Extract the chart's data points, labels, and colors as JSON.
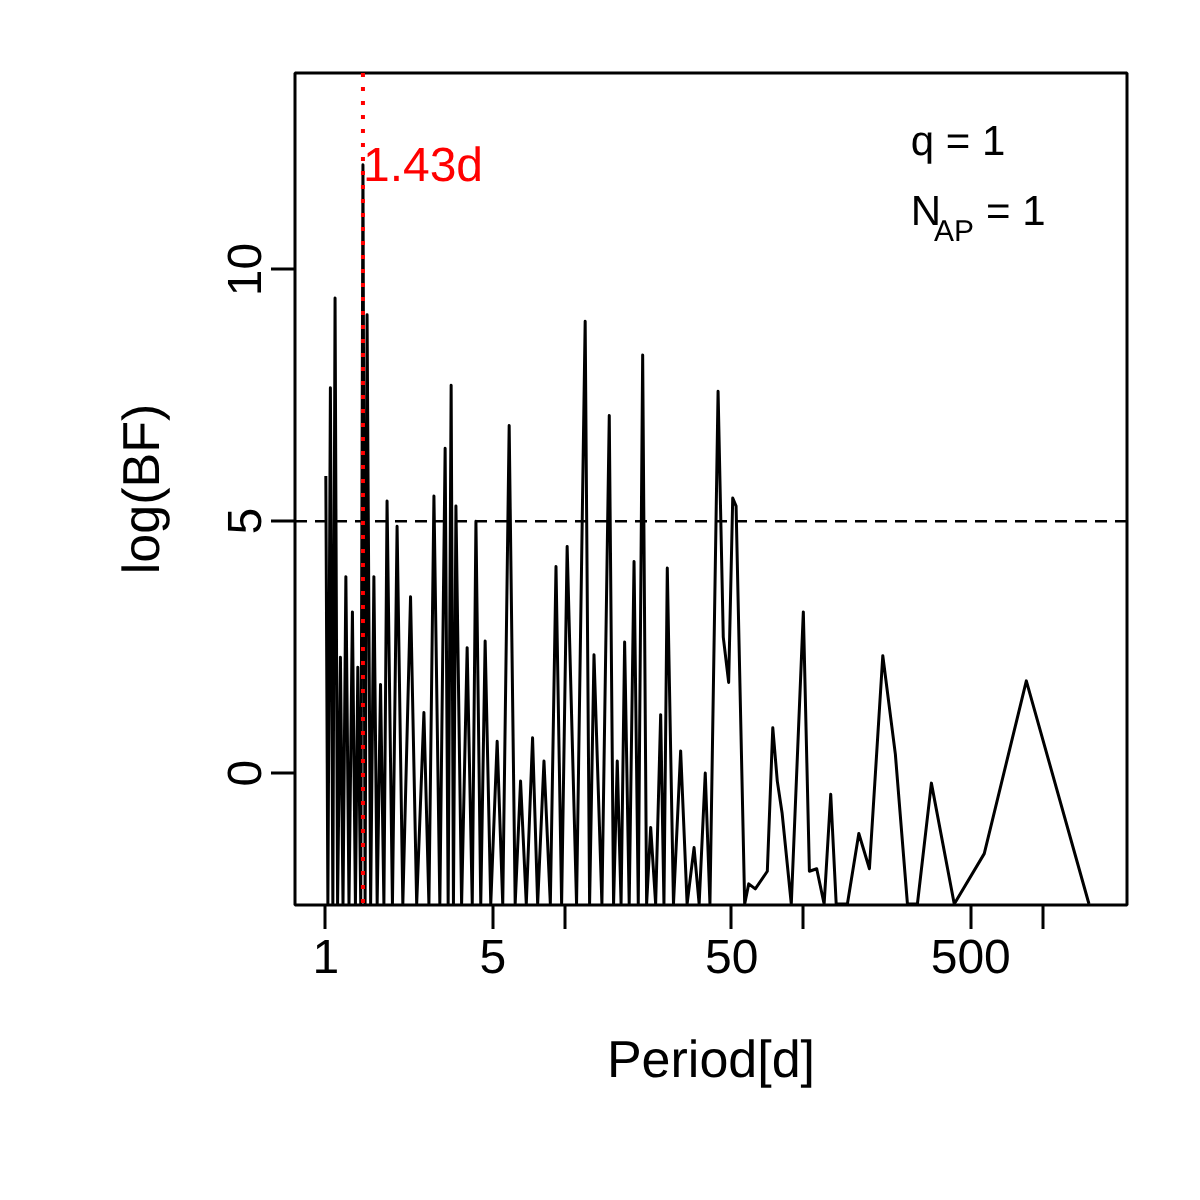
{
  "chart_data": {
    "type": "line",
    "xlabel": "Period[d]",
    "ylabel": "log(BF)",
    "log": "x",
    "xlim": [
      0.743,
      2253
    ],
    "ylim": [
      -2.62,
      13.9
    ],
    "xticks": [
      1,
      5,
      {
        "value": 10,
        "label": null
      },
      50,
      {
        "value": 100,
        "label": null
      },
      500,
      {
        "value": 1000,
        "label": null
      }
    ],
    "yticks": [
      0,
      5,
      10
    ],
    "grid": false,
    "line_style": "solid",
    "marker": "none",
    "annotations": [
      "q = 1",
      "N$_{AP}$ = 1"
    ],
    "ref_lines": [
      {
        "axis": "y",
        "value": 5,
        "label": null,
        "color": "#000000",
        "line_style": "dashed"
      },
      {
        "axis": "x",
        "value": 1.43,
        "label": "1.43d",
        "color": "#ff0000",
        "line_style": "dotted"
      }
    ],
    "series": [
      {
        "color": "#000000",
        "x": [
          1.0,
          1.02,
          1.045,
          1.07,
          1.093,
          1.12,
          1.151,
          1.18,
          1.213,
          1.25,
          1.292,
          1.33,
          1.361,
          1.4,
          1.43,
          1.46,
          1.488,
          1.54,
          1.589,
          1.64,
          1.694,
          1.75,
          1.804,
          1.9,
          1.987,
          2.1,
          2.262,
          2.4,
          2.573,
          2.7,
          2.834,
          3.0,
          3.157,
          3.25,
          3.345,
          3.42,
          3.503,
          3.7,
          3.903,
          4.1,
          4.248,
          4.45,
          4.642,
          4.9,
          5.212,
          5.5,
          5.851,
          6.2,
          6.53,
          6.9,
          7.331,
          7.7,
          8.183,
          8.7,
          9.188,
          9.7,
          10.23,
          11.2,
          12.17,
          12.7,
          13.25,
          14.3,
          15.35,
          16.0,
          16.58,
          17.2,
          17.8,
          18.6,
          19.49,
          20.3,
          21.18,
          22.0,
          22.88,
          24.0,
          25.19,
          26.0,
          26.85,
          28.5,
          30.54,
          32.5,
          34.75,
          36.5,
          38.71,
          40.5,
          43.8,
          46.05,
          48.5,
          50.44,
          52.1,
          56.6,
          58.85,
          62.7,
          70.4,
          74.2,
          77.5,
          81.2,
          88.7,
          99.6,
          105.6,
          113.3,
          121.7,
          129.7,
          136.7,
          152.3,
          170,
          188.3,
          214.2,
          241.8,
          271.6,
          299,
          342.1,
          426.5,
          569.4,
          854,
          1562
        ],
        "values": [
          5.9,
          -2.6,
          7.65,
          -2.6,
          9.43,
          -2.6,
          2.3,
          -2.6,
          3.9,
          -2.6,
          3.2,
          -2.6,
          2.1,
          -2.6,
          12.08,
          -2.6,
          9.1,
          -2.6,
          3.9,
          -2.6,
          1.76,
          -2.6,
          5.4,
          -2.6,
          4.9,
          -2.6,
          3.5,
          -2.6,
          1.2,
          -2.6,
          5.5,
          -2.6,
          6.45,
          -2.6,
          7.7,
          -2.6,
          5.3,
          -2.6,
          2.49,
          -2.6,
          5.0,
          -2.6,
          2.62,
          -2.6,
          0.63,
          -2.6,
          6.9,
          -2.6,
          -0.16,
          -2.6,
          0.7,
          -2.6,
          0.24,
          -2.6,
          4.1,
          -2.6,
          4.5,
          -2.6,
          8.97,
          -2.6,
          2.35,
          -2.6,
          7.1,
          -2.6,
          0.24,
          -2.6,
          2.6,
          -2.6,
          4.2,
          -2.6,
          8.3,
          -2.6,
          -1.08,
          -2.6,
          1.16,
          -2.6,
          4.07,
          -2.6,
          0.44,
          -2.6,
          -1.48,
          -2.6,
          0.0,
          -2.6,
          7.58,
          2.7,
          1.8,
          5.46,
          5.3,
          -2.6,
          -2.2,
          -2.3,
          -1.95,
          0.9,
          -0.16,
          -0.8,
          -2.6,
          3.2,
          -1.95,
          -1.9,
          -2.6,
          -0.42,
          -2.6,
          -2.6,
          -1.2,
          -1.9,
          2.33,
          0.37,
          -2.6,
          -2.6,
          -0.2,
          -2.6,
          -1.6,
          1.83,
          -2.6
        ]
      }
    ]
  }
}
